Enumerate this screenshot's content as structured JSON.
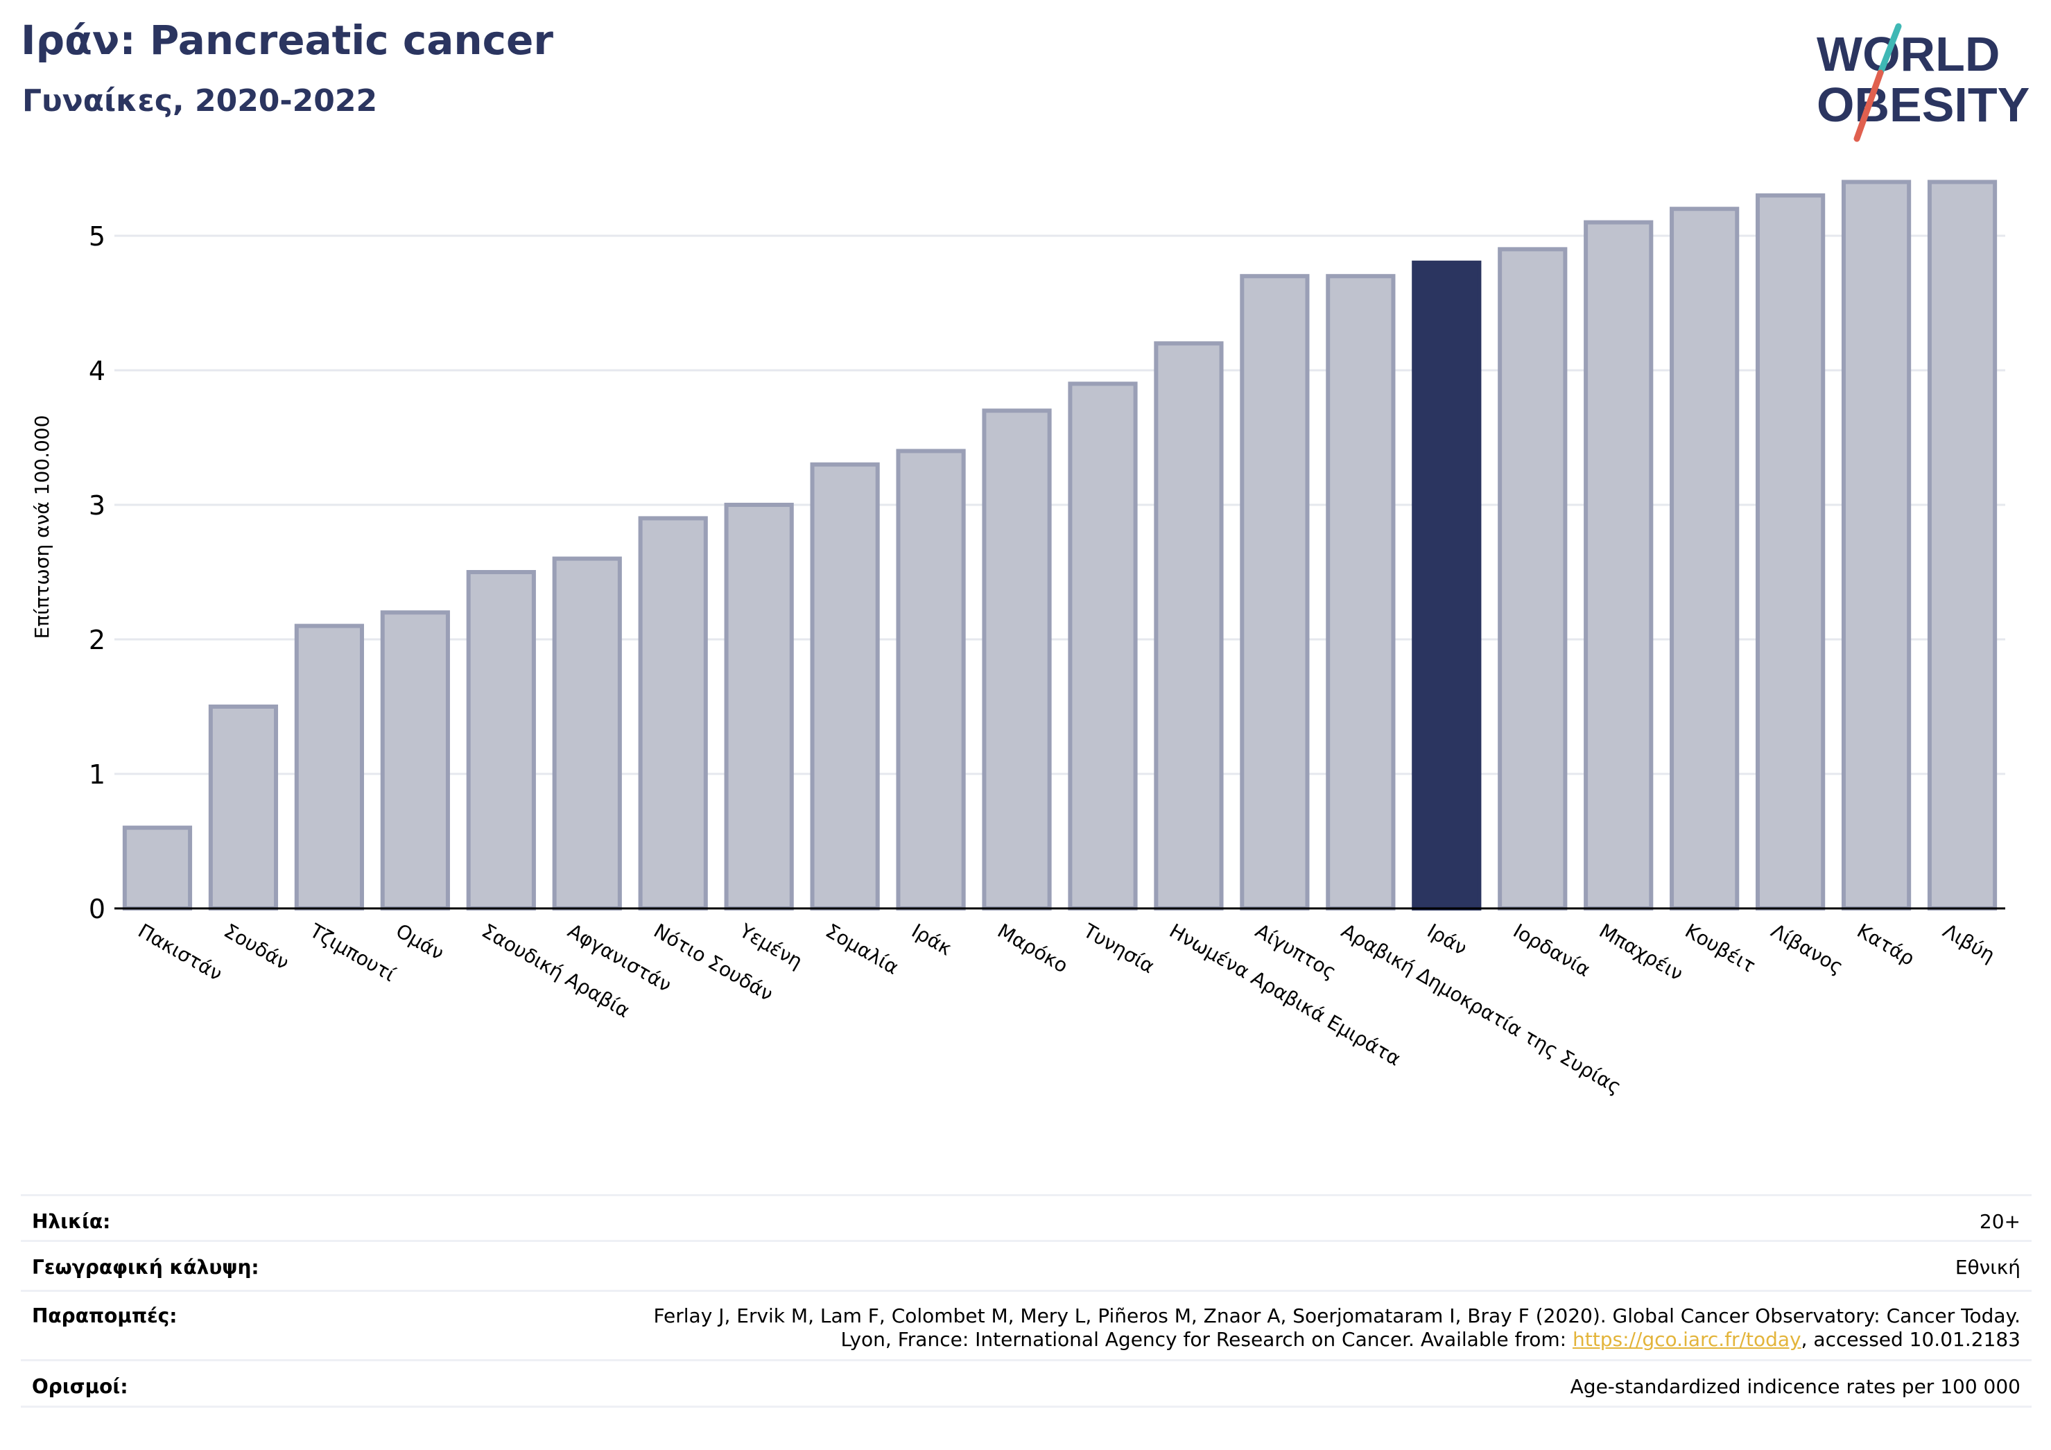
{
  "header": {
    "title": "Ιράν: Pancreatic cancer",
    "subtitle": "Γυναίκες, 2020-2022"
  },
  "logo": {
    "line1": "WORLD",
    "line2": "OBESITY",
    "colors": {
      "text": "#2b3560",
      "slash_teal": "#3fb8b5",
      "slash_red": "#e0604f"
    }
  },
  "colors": {
    "bar_default": "#bfc2ce",
    "bar_default_border": "#9a9fb6",
    "bar_highlight": "#2b3560",
    "grid": "#e6e8ee",
    "axis": "#000000"
  },
  "chart_data": {
    "type": "bar",
    "ylabel": "Επίπτωση ανά 100.000",
    "xlabel": "",
    "ylim": [
      0,
      5.6
    ],
    "yticks": [
      0,
      1,
      2,
      3,
      4,
      5
    ],
    "grid": true,
    "highlight": "Ιράν",
    "categories": [
      "Πακιστάν",
      "Σουδάν",
      "Τζιμπουτί",
      "Ομάν",
      "Σαουδική Αραβία",
      "Αφγανιστάν",
      "Νότιο Σουδάν",
      "Υεμένη",
      "Σομαλία",
      "Ιράκ",
      "Μαρόκο",
      "Τυνησία",
      "Ηνωμένα Αραβικά Εμιράτα",
      "Αίγυπτος",
      "Αραβική Δημοκρατία της Συρίας",
      "Ιράν",
      "Ιορδανία",
      "Μπαχρέιν",
      "Κουβέιτ",
      "Λίβανος",
      "Κατάρ",
      "Λιβύη"
    ],
    "values": [
      0.6,
      1.5,
      2.1,
      2.2,
      2.5,
      2.6,
      2.9,
      3.0,
      3.3,
      3.4,
      3.7,
      3.9,
      4.2,
      4.7,
      4.7,
      4.8,
      4.9,
      5.1,
      5.2,
      5.3,
      5.4,
      5.4
    ]
  },
  "info": {
    "age_label": "Ηλικία:",
    "age_value": "20+",
    "geo_label": "Γεωγραφική κάλυψη:",
    "geo_value": "Εθνική",
    "ref_label": "Παραπομπές:",
    "ref_line1": "Ferlay J, Ervik M, Lam F, Colombet M, Mery L, Piñeros M, Znaor A, Soerjomataram I, Bray F (2020). Global Cancer Observatory: Cancer Today.",
    "ref_line2_prefix": "Lyon, France: International Agency for Research on Cancer. Available from: ",
    "ref_link": "https://gco.iarc.fr/today",
    "ref_line2_suffix": ", accessed 10.01.2183",
    "def_label": "Ορισμοί:",
    "def_value": "Age-standardized indicence rates per 100 000"
  }
}
